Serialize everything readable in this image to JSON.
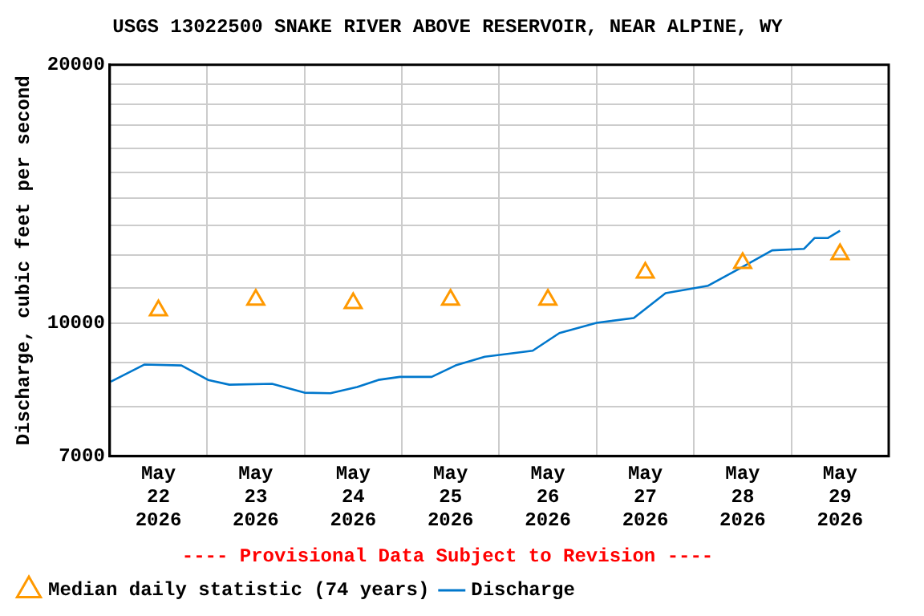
{
  "chart_data": {
    "type": "line",
    "title": "USGS 13022500 SNAKE RIVER ABOVE RESERVOIR, NEAR ALPINE, WY",
    "ylabel": "Discharge, cubic feet per second",
    "annotations": [
      "---- Provisional Data Subject to Revision ----"
    ],
    "log": "y",
    "grid": true,
    "legend": "bottom",
    "xlim": [
      "2026-05-22T00:00",
      "2026-05-30T00:00"
    ],
    "xticks": [
      {
        "value": "2026-05-22T00:00",
        "label": null
      },
      {
        "value": "2026-05-22T12:00",
        "label": "May 22 2026"
      },
      {
        "value": "2026-05-23T00:00",
        "label": null
      },
      {
        "value": "2026-05-23T12:00",
        "label": "May 23 2026"
      },
      {
        "value": "2026-05-24T00:00",
        "label": null
      },
      {
        "value": "2026-05-24T12:00",
        "label": "May 24 2026"
      },
      {
        "value": "2026-05-25T00:00",
        "label": null
      },
      {
        "value": "2026-05-25T12:00",
        "label": "May 25 2026"
      },
      {
        "value": "2026-05-26T00:00",
        "label": null
      },
      {
        "value": "2026-05-26T12:00",
        "label": "May 26 2026"
      },
      {
        "value": "2026-05-27T00:00",
        "label": null
      },
      {
        "value": "2026-05-27T12:00",
        "label": "May 27 2026"
      },
      {
        "value": "2026-05-28T00:00",
        "label": null
      },
      {
        "value": "2026-05-28T12:00",
        "label": "May 28 2026"
      },
      {
        "value": "2026-05-29T00:00",
        "label": null
      },
      {
        "value": "2026-05-29T12:00",
        "label": "May 29 2026"
      },
      {
        "value": "2026-05-30T00:00",
        "label": null
      }
    ],
    "ylim": [
      7000,
      20000
    ],
    "yticks": [
      7000,
      {
        "value": 8000,
        "label": null
      },
      {
        "value": 9000,
        "label": null
      },
      10000,
      {
        "value": 11000,
        "label": null
      },
      {
        "value": 12000,
        "label": null
      },
      {
        "value": 13000,
        "label": null
      },
      {
        "value": 14000,
        "label": null
      },
      {
        "value": 15000,
        "label": null
      },
      {
        "value": 16000,
        "label": null
      },
      {
        "value": 17000,
        "label": null
      },
      {
        "value": 18000,
        "label": null
      },
      {
        "value": 19000,
        "label": null
      },
      20000
    ],
    "series": [
      {
        "name": "Median daily statistic (74 years)",
        "type": "scatter",
        "marker": "triangle",
        "color": "#ff9900",
        "x": [
          "2026-05-22T12:00",
          "2026-05-23T12:00",
          "2026-05-24T12:00",
          "2026-05-25T12:00",
          "2026-05-26T12:00",
          "2026-05-27T12:00",
          "2026-05-28T12:00",
          "2026-05-29T12:00"
        ],
        "values": [
          10350,
          10650,
          10550,
          10650,
          10650,
          11450,
          11750,
          12030
        ]
      },
      {
        "name": "Discharge",
        "color": "#0077cc",
        "x": [
          "2026-05-22T00:15",
          "2026-05-22T08:30",
          "2026-05-22T17:40",
          "2026-05-23T00:15",
          "2026-05-23T05:30",
          "2026-05-23T16:00",
          "2026-05-24T00:00",
          "2026-05-24T06:24",
          "2026-05-24T13:00",
          "2026-05-24T18:12",
          "2026-05-24T23:30",
          "2026-05-25T07:21",
          "2026-05-25T13:15",
          "2026-05-25T20:27",
          "2026-05-26T00:25",
          "2026-05-26T08:15",
          "2026-05-26T14:50",
          "2026-05-27T00:00",
          "2026-05-27T09:10",
          "2026-05-27T17:00",
          "2026-05-28T03:30",
          "2026-05-28T11:24",
          "2026-05-28T19:16",
          "2026-05-29T03:09",
          "2026-05-29T05:45",
          "2026-05-29T09:03",
          "2026-05-29T12:00"
        ],
        "values": [
          8550,
          8950,
          8930,
          8590,
          8480,
          8500,
          8300,
          8290,
          8430,
          8590,
          8660,
          8660,
          8930,
          9140,
          9190,
          9290,
          9740,
          10010,
          10140,
          10840,
          11060,
          11590,
          12160,
          12210,
          12570,
          12570,
          12820
        ]
      }
    ]
  }
}
